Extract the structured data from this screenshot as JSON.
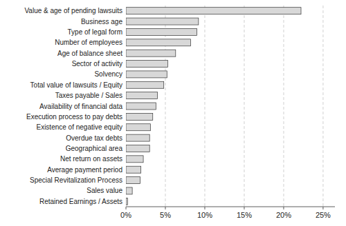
{
  "chart_data": {
    "type": "bar",
    "orientation": "horizontal",
    "categories": [
      "Retained Earnings / Assets",
      "Sales value",
      "Special Revitalization Process",
      "Average payment period",
      "Net return on assets",
      "Geographical area",
      "Overdue tax debts",
      "Existence of negative equity",
      "Execution process to pay debts",
      "Availability of financial data",
      "Taxes payable / Sales",
      "Total value of lawsuits / Equity",
      "Solvency",
      "Sector of activity",
      "Age of balance sheet",
      "Number of employees",
      "Type of legal form",
      "Business age",
      "Value & age of pending lawsuits"
    ],
    "values": [
      0.002,
      0.008,
      0.018,
      0.019,
      0.022,
      0.03,
      0.03,
      0.031,
      0.034,
      0.038,
      0.04,
      0.048,
      0.052,
      0.053,
      0.063,
      0.082,
      0.09,
      0.092,
      0.222
    ],
    "color": "#d8d8d8",
    "xlim": [
      0,
      0.265
    ],
    "xticks": [
      {
        "value": 0.0,
        "label": "0%"
      },
      {
        "value": 0.05,
        "label": "5%"
      },
      {
        "value": 0.1,
        "label": "10%"
      },
      {
        "value": 0.15,
        "label": "15%"
      },
      {
        "value": 0.2,
        "label": "20%"
      },
      {
        "value": 0.25,
        "label": "25%"
      }
    ],
    "grid": true
  }
}
